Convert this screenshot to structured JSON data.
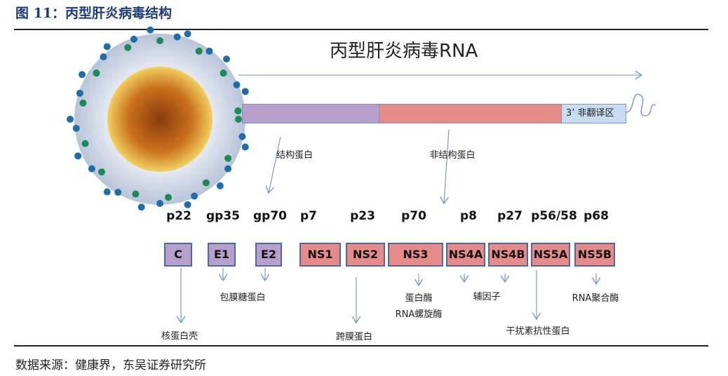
{
  "header": {
    "title": "图 11：丙型肝炎病毒结构"
  },
  "diagram": {
    "rna_title": "丙型肝炎病毒RNA",
    "utr_label": "3’ 非翻译区",
    "structural_label": "结构蛋白",
    "nonstructural_label": "非结构蛋白",
    "proteins": [
      {
        "name": "C",
        "weight": "p22",
        "type": "structural"
      },
      {
        "name": "E1",
        "weight": "gp35",
        "type": "structural"
      },
      {
        "name": "E2",
        "weight": "gp70",
        "type": "structural"
      },
      {
        "name": "NS1",
        "weight": "p7",
        "type": "nonstructural"
      },
      {
        "name": "NS2",
        "weight": "p23",
        "type": "nonstructural"
      },
      {
        "name": "NS3",
        "weight": "p70",
        "type": "nonstructural"
      },
      {
        "name": "NS4A",
        "weight": "p8",
        "type": "nonstructural"
      },
      {
        "name": "NS4B",
        "weight": "p27",
        "type": "nonstructural"
      },
      {
        "name": "NS5A",
        "weight": "p56/58",
        "type": "nonstructural"
      },
      {
        "name": "NS5B",
        "weight": "p68",
        "type": "nonstructural"
      }
    ],
    "functions": {
      "capsid": "核蛋白壳",
      "envelope": "包膜糖蛋白",
      "transmembrane": "跨膜蛋白",
      "protease": "蛋白酶",
      "helicase": "RNA螺旋酶",
      "cofactor": "辅因子",
      "interferon": "干扰素抗性蛋白",
      "polymerase": "RNA聚合酶"
    },
    "colors": {
      "structural": "#b7a0cc",
      "nonstructural": "#e58c8a",
      "utr": "#c8dcf0",
      "arrow": "#7a9ccc"
    }
  },
  "footer": {
    "source": "数据来源：健康界，东吴证券研究所"
  }
}
